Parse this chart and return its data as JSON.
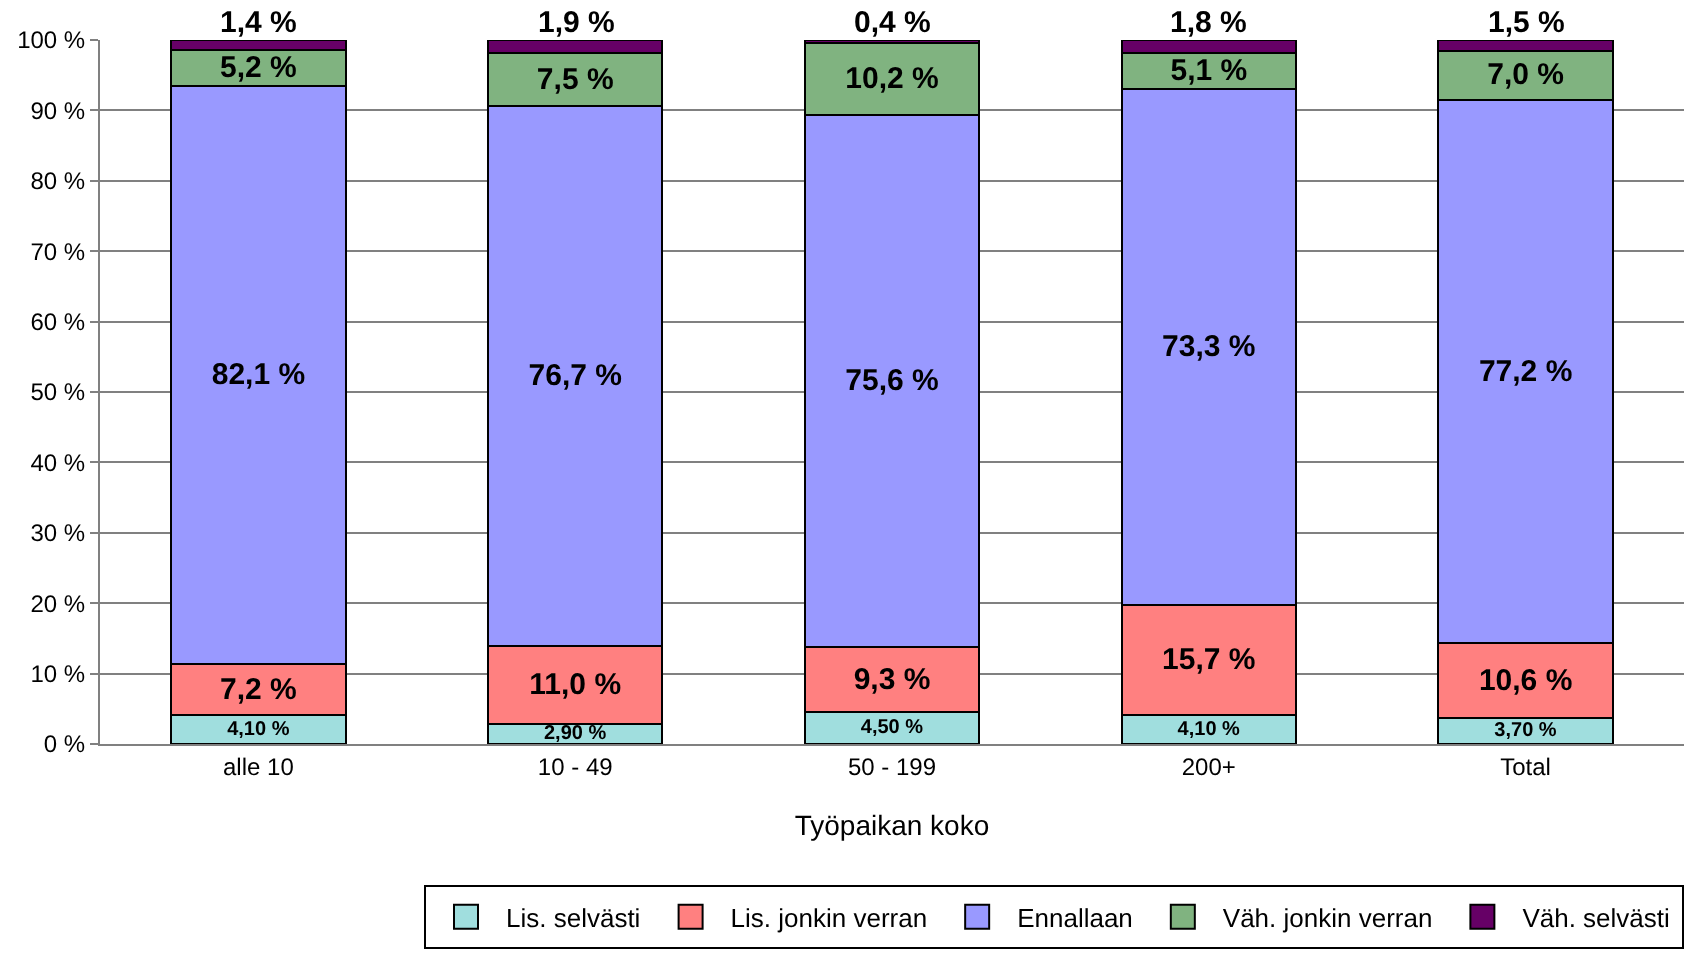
{
  "chart_data": {
    "type": "bar",
    "stacked": true,
    "xlabel": "Työpaikan koko",
    "categories": [
      "alle 10",
      "10 - 49",
      "50 - 199",
      "200+",
      "Total"
    ],
    "series": [
      {
        "name": "Lis. selvästi",
        "color": "#a0dede",
        "values": [
          4.1,
          2.9,
          4.5,
          4.1,
          3.7
        ],
        "value_labels": [
          "4,10 %",
          "2,90 %",
          "4,50 %",
          "4,10 %",
          "3,70 %"
        ]
      },
      {
        "name": "Lis. jonkin verran",
        "color": "#ff8080",
        "values": [
          7.2,
          11.0,
          9.3,
          15.7,
          10.6
        ],
        "value_labels": [
          "7,2 %",
          "11,0 %",
          "9,3 %",
          "15,7 %",
          "10,6 %"
        ]
      },
      {
        "name": "Ennallaan",
        "color": "#9999ff",
        "values": [
          82.1,
          76.7,
          75.6,
          73.3,
          77.2
        ],
        "value_labels": [
          "82,1 %",
          "76,7 %",
          "75,6 %",
          "73,3 %",
          "77,2 %"
        ]
      },
      {
        "name": "Väh. jonkin verran",
        "color": "#80b380",
        "values": [
          5.2,
          7.5,
          10.2,
          5.1,
          7.0
        ],
        "value_labels": [
          "5,2 %",
          "7,5 %",
          "10,2 %",
          "5,1 %",
          "7,0 %"
        ]
      },
      {
        "name": "Väh. selvästi",
        "color": "#660066",
        "values": [
          1.4,
          1.9,
          0.4,
          1.8,
          1.5
        ],
        "value_labels": [
          "1,4 %",
          "1,9 %",
          "0,4 %",
          "1,8 %",
          "1,5 %"
        ]
      }
    ],
    "ylim": [
      0,
      100
    ],
    "yticks": [
      {
        "value": 0,
        "label": "0 %"
      },
      {
        "value": 10,
        "label": "10 %"
      },
      {
        "value": 20,
        "label": "20 %"
      },
      {
        "value": 30,
        "label": "30 %"
      },
      {
        "value": 40,
        "label": "40 %"
      },
      {
        "value": 50,
        "label": "50 %"
      },
      {
        "value": 60,
        "label": "60 %"
      },
      {
        "value": 70,
        "label": "70 %"
      },
      {
        "value": 80,
        "label": "80 %"
      },
      {
        "value": 90,
        "label": "90 %"
      },
      {
        "value": 100,
        "label": "100 %"
      }
    ],
    "grid": "y",
    "legend": "bottom right"
  }
}
